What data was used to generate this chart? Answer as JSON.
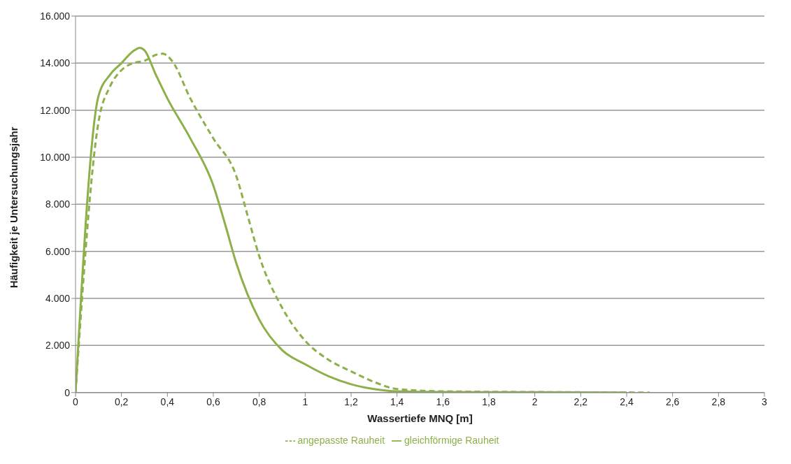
{
  "chart_data": {
    "type": "line",
    "xlabel": "Wassertiefe MNQ [m]",
    "ylabel": "Häufigkeit je Untersuchungsjahr",
    "xlim": [
      0,
      3
    ],
    "xticks": [
      0,
      {
        "value": 0.2,
        "label": "0,2"
      },
      {
        "value": 0.4,
        "label": "0,4"
      },
      {
        "value": 0.6,
        "label": "0,6"
      },
      {
        "value": 0.8,
        "label": "0,8"
      },
      1,
      {
        "value": 1.2,
        "label": "1,2"
      },
      {
        "value": 1.4,
        "label": "1,4"
      },
      {
        "value": 1.6,
        "label": "1,6"
      },
      {
        "value": 1.8,
        "label": "1,8"
      },
      2,
      {
        "value": 2.2,
        "label": "2,2"
      },
      {
        "value": 2.4,
        "label": "2,4"
      },
      {
        "value": 2.6,
        "label": "2,6"
      },
      {
        "value": 2.8,
        "label": "2,8"
      },
      3
    ],
    "ylim": [
      0,
      16000
    ],
    "yticks": [
      0,
      {
        "value": 2000,
        "label": "2.000"
      },
      {
        "value": 4000,
        "label": "4.000"
      },
      {
        "value": 6000,
        "label": "6.000"
      },
      {
        "value": 8000,
        "label": "8.000"
      },
      {
        "value": 10000,
        "label": "10.000"
      },
      {
        "value": 12000,
        "label": "12.000"
      },
      {
        "value": 14000,
        "label": "14.000"
      },
      {
        "value": 16000,
        "label": "16.000"
      }
    ],
    "grid": "y",
    "legend": "bottom",
    "marker": "none",
    "series": [
      {
        "name": "gleichförmige Rauheit",
        "color": "#8db04a",
        "line_style": "solid",
        "x": [
          0,
          0.1,
          0.15,
          0.2,
          0.25,
          0.28,
          0.3,
          0.35,
          0.4,
          0.5,
          0.6,
          0.65,
          0.7,
          0.8,
          0.9,
          1.0,
          1.1,
          1.2,
          1.3,
          1.4,
          1.6,
          2.0,
          2.4
        ],
        "values": [
          0,
          12600,
          13500,
          14000,
          14500,
          14650,
          14550,
          13500,
          12500,
          10800,
          8800,
          7200,
          5500,
          3100,
          1800,
          1200,
          700,
          350,
          150,
          50,
          20,
          10,
          0
        ]
      },
      {
        "name": "angepasste Rauheit",
        "color": "#8db04a",
        "line_style": "dashed",
        "x": [
          0,
          0.1,
          0.15,
          0.2,
          0.25,
          0.3,
          0.35,
          0.38,
          0.42,
          0.5,
          0.6,
          0.7,
          0.75,
          0.8,
          0.9,
          1.0,
          1.1,
          1.2,
          1.3,
          1.4,
          1.6,
          2.0,
          2.5
        ],
        "values": [
          0,
          11500,
          13000,
          13700,
          14000,
          14100,
          14350,
          14400,
          14100,
          12500,
          10800,
          9200,
          7500,
          5800,
          3600,
          2200,
          1400,
          900,
          450,
          150,
          50,
          20,
          0
        ]
      }
    ]
  }
}
